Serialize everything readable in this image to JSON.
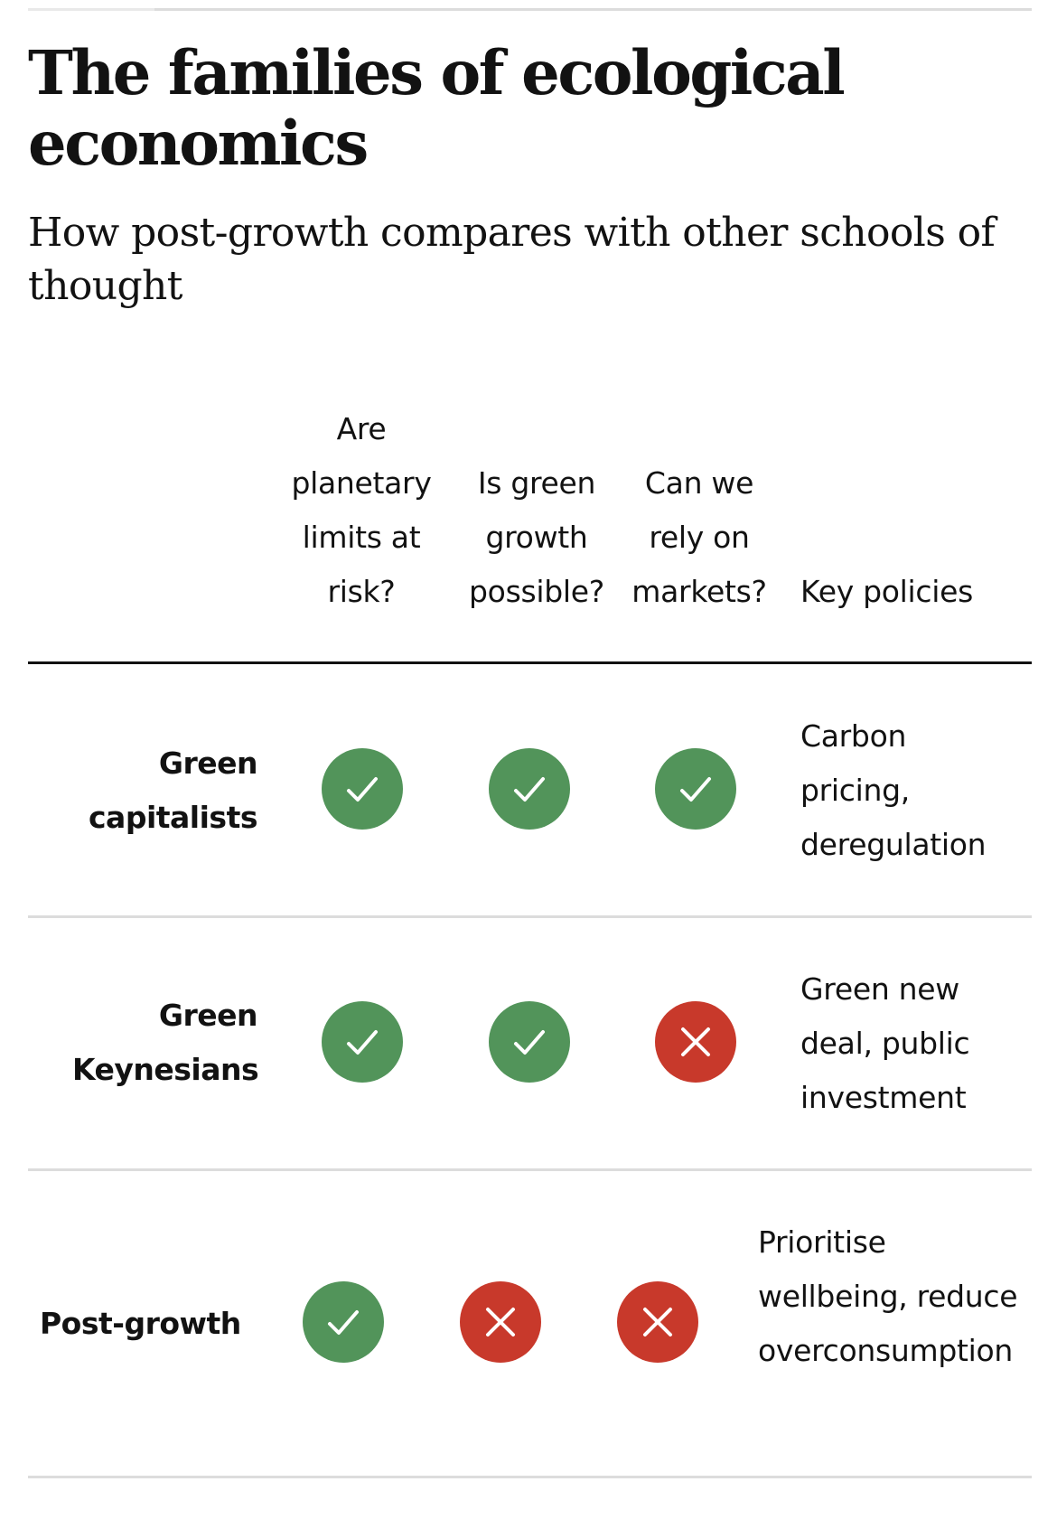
{
  "title": "The families of ecological economics",
  "subtitle": "How post-growth compares with other schools of thought",
  "colors": {
    "yes": "#52945a",
    "no": "#c8392b",
    "rule_light": "#dcdcdc",
    "rule_dark": "#121212"
  },
  "chart_data": {
    "type": "table",
    "title": "The families of ecological economics",
    "subtitle": "How post-growth compares with other schools of thought",
    "columns": [
      "Are planetary limits at risk?",
      "Is green growth possible?",
      "Can we rely on markets?",
      "Key policies"
    ],
    "rows": [
      {
        "label": "Green capitalists",
        "answers": [
          "yes",
          "yes",
          "yes"
        ],
        "policies": "Carbon pricing, deregulation"
      },
      {
        "label": "Green Keynesians",
        "answers": [
          "yes",
          "yes",
          "no"
        ],
        "policies": "Green new deal, public investment"
      },
      {
        "label": "Post-growth",
        "answers": [
          "yes",
          "no",
          "no"
        ],
        "policies": "Prioritise wellbeing, reduce overconsumption"
      }
    ]
  }
}
